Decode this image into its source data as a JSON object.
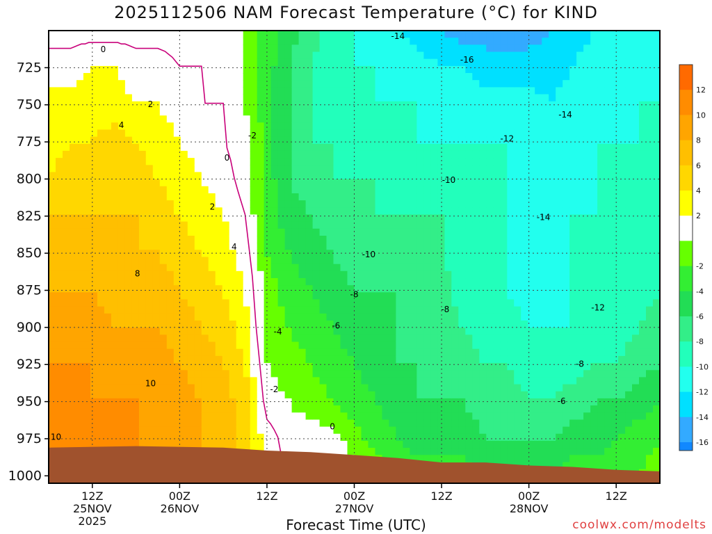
{
  "title": "2025112506 NAM Forecast Temperature (°C) for KIND",
  "xlabel": "Forecast Time (UTC)",
  "credit": "coolwx.com/modelts",
  "colors": {
    "terrain": "#a0522d",
    "freezing_line": "#c8007a"
  },
  "chart_data": {
    "type": "heatmap",
    "title": "2025112506 NAM Forecast Temperature (°C) for KIND",
    "xlabel": "Forecast Time (UTC)",
    "ylabel": "",
    "y_axis": {
      "label": "",
      "reversed": true,
      "range": [
        700,
        1005
      ],
      "ticks": [
        725,
        750,
        775,
        800,
        825,
        850,
        875,
        900,
        925,
        950,
        975,
        1000
      ]
    },
    "x_axis": {
      "range_hours": [
        0,
        84
      ],
      "ticks": [
        {
          "hour": 6,
          "lines": [
            "12Z",
            "25NOV",
            "2025"
          ]
        },
        {
          "hour": 18,
          "lines": [
            "00Z",
            "26NOV"
          ]
        },
        {
          "hour": 30,
          "lines": [
            "12Z"
          ]
        },
        {
          "hour": 42,
          "lines": [
            "00Z",
            "27NOV"
          ]
        },
        {
          "hour": 54,
          "lines": [
            "12Z"
          ]
        },
        {
          "hour": 66,
          "lines": [
            "00Z",
            "28NOV"
          ]
        },
        {
          "hour": 78,
          "lines": [
            "12Z"
          ]
        }
      ]
    },
    "grid": true,
    "colorbar": {
      "placement": "right",
      "levels": [
        {
          "label": "12",
          "color": "#ff6a00"
        },
        {
          "label": "10",
          "color": "#ff8c00"
        },
        {
          "label": "8",
          "color": "#ffa500"
        },
        {
          "label": "6",
          "color": "#ffbf00"
        },
        {
          "label": "4",
          "color": "#ffd700"
        },
        {
          "label": "2",
          "color": "#ffff00"
        },
        {
          "label": "",
          "color": "#ffffff"
        },
        {
          "label": "-2",
          "color": "#66ff00"
        },
        {
          "label": "-4",
          "color": "#33ee33"
        },
        {
          "label": "-6",
          "color": "#22dd55"
        },
        {
          "label": "-8",
          "color": "#33ee88"
        },
        {
          "label": "-10",
          "color": "#22ffbb"
        },
        {
          "label": "-12",
          "color": "#22ffee"
        },
        {
          "label": "-14",
          "color": "#00e0ff"
        },
        {
          "label": "-16",
          "color": "#33aaff"
        }
      ],
      "extra_bottom_color": "#1188ff"
    },
    "columns": [
      {
        "hour": 0,
        "temps": [
          -1,
          1,
          3,
          3,
          4,
          6,
          7,
          8,
          8,
          10,
          11,
          11,
          10
        ]
      },
      {
        "hour": 3,
        "temps": [
          -1,
          1,
          3,
          4,
          5,
          6,
          7,
          8,
          9,
          10,
          11,
          11,
          10
        ]
      },
      {
        "hour": 6,
        "temps": [
          -1,
          2,
          3,
          4,
          5,
          6,
          7,
          8,
          9,
          10,
          10,
          10,
          10
        ]
      },
      {
        "hour": 9,
        "temps": [
          -1,
          2,
          3,
          5,
          5,
          6,
          6,
          7,
          8,
          9,
          10,
          10,
          10
        ]
      },
      {
        "hour": 12,
        "temps": [
          -1,
          1,
          2,
          4,
          5,
          6,
          6,
          7,
          8,
          9,
          10,
          10,
          10
        ]
      },
      {
        "hour": 15,
        "temps": [
          -1,
          1,
          2,
          3,
          4,
          5,
          6,
          7,
          8,
          9,
          9,
          10,
          9
        ]
      },
      {
        "hour": 18,
        "temps": [
          -1,
          0,
          1,
          2,
          3,
          4,
          5,
          6,
          7,
          8,
          9,
          9,
          9
        ]
      },
      {
        "hour": 21,
        "temps": [
          -1,
          0,
          0,
          1,
          2,
          3,
          4,
          5,
          6,
          7,
          8,
          8,
          8
        ]
      },
      {
        "hour": 24,
        "temps": [
          -1,
          -1,
          0,
          0,
          1,
          2,
          3,
          4,
          5,
          6,
          7,
          7,
          7
        ]
      },
      {
        "hour": 27,
        "temps": [
          -2,
          -2,
          -2,
          -1,
          -1,
          0,
          1,
          2,
          3,
          4,
          5,
          5,
          5
        ]
      },
      {
        "hour": 30,
        "temps": [
          -5,
          -5,
          -5,
          -5,
          -5,
          -5,
          -4,
          -3,
          -3,
          -2,
          -1,
          1,
          1
        ]
      },
      {
        "hour": 33,
        "temps": [
          -7,
          -8,
          -8,
          -8,
          -8,
          -7,
          -6,
          -5,
          -4,
          -3,
          -2,
          -1,
          0
        ]
      },
      {
        "hour": 36,
        "temps": [
          -9,
          -10,
          -10,
          -10,
          -9,
          -8,
          -7,
          -6,
          -5,
          -4,
          -3,
          -1,
          0
        ]
      },
      {
        "hour": 39,
        "temps": [
          -11,
          -11,
          -11,
          -10,
          -10,
          -9,
          -8,
          -7,
          -6,
          -5,
          -4,
          -1,
          0
        ]
      },
      {
        "hour": 42,
        "temps": [
          -12,
          -12,
          -12,
          -11,
          -10,
          -10,
          -9,
          -8,
          -7,
          -6,
          -5,
          -3,
          -1
        ]
      },
      {
        "hour": 45,
        "temps": [
          -13,
          -12,
          -12,
          -11,
          -10,
          -10,
          -9,
          -8,
          -8,
          -7,
          -6,
          -5,
          -2
        ]
      },
      {
        "hour": 48,
        "temps": [
          -14,
          -13,
          -12,
          -12,
          -11,
          -10,
          -9,
          -8,
          -8,
          -8,
          -7,
          -6,
          -4
        ]
      },
      {
        "hour": 51,
        "temps": [
          -15,
          -13,
          -12,
          -12,
          -11,
          -10,
          -9,
          -9,
          -9,
          -8,
          -8,
          -7,
          -5
        ]
      },
      {
        "hour": 54,
        "temps": [
          -16,
          -14,
          -13,
          -12,
          -11,
          -10,
          -10,
          -9,
          -9,
          -9,
          -8,
          -7,
          -5
        ]
      },
      {
        "hour": 57,
        "temps": [
          -17,
          -14,
          -13,
          -12,
          -12,
          -11,
          -11,
          -11,
          -10,
          -9,
          -8,
          -7,
          -5
        ]
      },
      {
        "hour": 60,
        "temps": [
          -17,
          -15,
          -13,
          -12,
          -12,
          -11,
          -11,
          -11,
          -11,
          -10,
          -9,
          -8,
          -6
        ]
      },
      {
        "hour": 63,
        "temps": [
          -17,
          -15,
          -13,
          -12,
          -12,
          -12,
          -12,
          -12,
          -11,
          -10,
          -9,
          -8,
          -6
        ]
      },
      {
        "hour": 66,
        "temps": [
          -17,
          -15,
          -13,
          -12,
          -13,
          -13,
          -14,
          -13,
          -12,
          -11,
          -10,
          -8,
          -6
        ]
      },
      {
        "hour": 69,
        "temps": [
          -16,
          -15,
          -14,
          -13,
          -13,
          -13,
          -14,
          -13,
          -12,
          -11,
          -10,
          -8,
          -6
        ]
      },
      {
        "hour": 72,
        "temps": [
          -15,
          -14,
          -13,
          -13,
          -13,
          -12,
          -12,
          -12,
          -12,
          -11,
          -9,
          -7,
          -5
        ]
      },
      {
        "hour": 75,
        "temps": [
          -14,
          -13,
          -13,
          -12,
          -12,
          -12,
          -12,
          -12,
          -11,
          -10,
          -8,
          -7,
          -5
        ]
      },
      {
        "hour": 78,
        "temps": [
          -14,
          -13,
          -13,
          -12,
          -12,
          -12,
          -12,
          -11,
          -11,
          -10,
          -8,
          -6,
          -5
        ]
      },
      {
        "hour": 81,
        "temps": [
          -14,
          -13,
          -12,
          -12,
          -12,
          -12,
          -11,
          -11,
          -10,
          -9,
          -7,
          -5,
          -4
        ]
      },
      {
        "hour": 84,
        "temps": [
          -13,
          -12,
          -12,
          -12,
          -12,
          -11,
          -11,
          -10,
          -9,
          -8,
          -6,
          -4,
          -3
        ]
      }
    ],
    "column_levels": [
      700,
      725,
      750,
      775,
      800,
      825,
      850,
      875,
      900,
      925,
      950,
      975,
      1000
    ],
    "surface_pressure": [
      {
        "hour": 0,
        "p": 981
      },
      {
        "hour": 12,
        "p": 980
      },
      {
        "hour": 24,
        "p": 981
      },
      {
        "hour": 30,
        "p": 983
      },
      {
        "hour": 36,
        "p": 984
      },
      {
        "hour": 42,
        "p": 986
      },
      {
        "hour": 48,
        "p": 988
      },
      {
        "hour": 54,
        "p": 991
      },
      {
        "hour": 60,
        "p": 991
      },
      {
        "hour": 66,
        "p": 993
      },
      {
        "hour": 72,
        "p": 994
      },
      {
        "hour": 78,
        "p": 996
      },
      {
        "hour": 84,
        "p": 997
      }
    ],
    "contour_labels": [
      {
        "text": "0",
        "hour": 7.5,
        "p": 713
      },
      {
        "text": "2",
        "hour": 14,
        "p": 750
      },
      {
        "text": "4",
        "hour": 10,
        "p": 764
      },
      {
        "text": "0",
        "hour": 24.5,
        "p": 786
      },
      {
        "text": "-2",
        "hour": 28,
        "p": 771
      },
      {
        "text": "2",
        "hour": 22.5,
        "p": 819
      },
      {
        "text": "4",
        "hour": 25.5,
        "p": 846
      },
      {
        "text": "8",
        "hour": 12.2,
        "p": 864
      },
      {
        "text": "10",
        "hour": 14,
        "p": 938
      },
      {
        "text": "10",
        "hour": 1,
        "p": 974
      },
      {
        "text": "-14",
        "hour": 48,
        "p": 704
      },
      {
        "text": "-16",
        "hour": 57.5,
        "p": 720
      },
      {
        "text": "-14",
        "hour": 71,
        "p": 757
      },
      {
        "text": "-12",
        "hour": 63,
        "p": 773
      },
      {
        "text": "-10",
        "hour": 55,
        "p": 801
      },
      {
        "text": "-14",
        "hour": 68,
        "p": 826
      },
      {
        "text": "-10",
        "hour": 44,
        "p": 851
      },
      {
        "text": "-8",
        "hour": 42,
        "p": 878
      },
      {
        "text": "-8",
        "hour": 54.5,
        "p": 888
      },
      {
        "text": "-12",
        "hour": 75.5,
        "p": 887
      },
      {
        "text": "-6",
        "hour": 39.5,
        "p": 899
      },
      {
        "text": "-4",
        "hour": 31.5,
        "p": 903
      },
      {
        "text": "-8",
        "hour": 73,
        "p": 925
      },
      {
        "text": "-2",
        "hour": 31,
        "p": 942
      },
      {
        "text": "-6",
        "hour": 70.5,
        "p": 950
      },
      {
        "text": "0",
        "hour": 39,
        "p": 967
      }
    ]
  }
}
